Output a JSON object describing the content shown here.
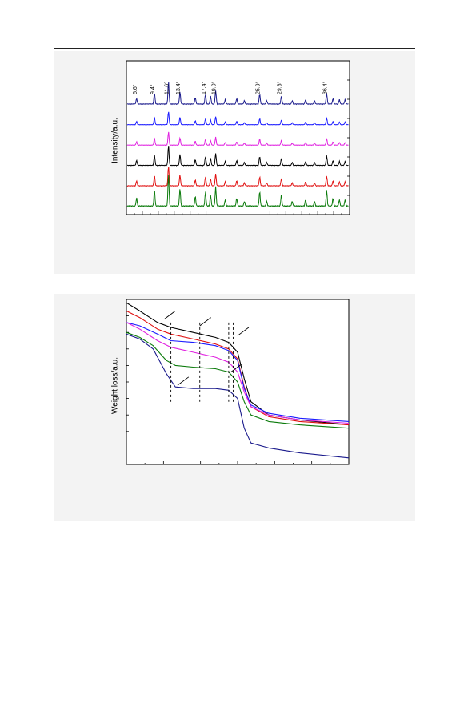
{
  "chart_data": [
    {
      "type": "line",
      "ylabel": "Intensity/a.u.",
      "xlim": [
        5,
        40
      ],
      "annotations": [
        {
          "label": "6.6°",
          "x": 6.6
        },
        {
          "label": "9.4°",
          "x": 9.4
        },
        {
          "label": "11.6°",
          "x": 11.6
        },
        {
          "label": "13.4°",
          "x": 13.4
        },
        {
          "label": "17.4°",
          "x": 17.4
        },
        {
          "label": "19.0°",
          "x": 19.0
        },
        {
          "label": "25.9°",
          "x": 25.9
        },
        {
          "label": "29.3°",
          "x": 29.3
        },
        {
          "label": "36.4°",
          "x": 36.4
        }
      ],
      "series": [
        {
          "color": "#1a1a8c",
          "offset": 5
        },
        {
          "color": "#1a1aff",
          "offset": 4
        },
        {
          "color": "#e020e0",
          "offset": 3
        },
        {
          "color": "#000000",
          "offset": 2
        },
        {
          "color": "#e01010",
          "offset": 1
        },
        {
          "color": "#0a7a0a",
          "offset": 0
        }
      ]
    },
    {
      "type": "line",
      "ylabel": "Weight loss/a.u.",
      "series": [
        {
          "color": "#000000",
          "values": [
            [
              0,
              0.98
            ],
            [
              0.06,
              0.93
            ],
            [
              0.14,
              0.86
            ],
            [
              0.2,
              0.83
            ],
            [
              0.3,
              0.8
            ],
            [
              0.4,
              0.77
            ],
            [
              0.46,
              0.74
            ],
            [
              0.5,
              0.68
            ],
            [
              0.53,
              0.52
            ],
            [
              0.56,
              0.38
            ],
            [
              0.64,
              0.3
            ],
            [
              0.78,
              0.27
            ],
            [
              1,
              0.24
            ]
          ]
        },
        {
          "color": "#e01010",
          "values": [
            [
              0,
              0.93
            ],
            [
              0.06,
              0.89
            ],
            [
              0.14,
              0.82
            ],
            [
              0.2,
              0.79
            ],
            [
              0.3,
              0.76
            ],
            [
              0.4,
              0.73
            ],
            [
              0.46,
              0.7
            ],
            [
              0.5,
              0.64
            ],
            [
              0.53,
              0.47
            ],
            [
              0.56,
              0.35
            ],
            [
              0.64,
              0.29
            ],
            [
              0.78,
              0.26
            ],
            [
              1,
              0.24
            ]
          ]
        },
        {
          "color": "#1a1aff",
          "values": [
            [
              0,
              0.86
            ],
            [
              0.06,
              0.84
            ],
            [
              0.14,
              0.79
            ],
            [
              0.2,
              0.75
            ],
            [
              0.3,
              0.74
            ],
            [
              0.4,
              0.72
            ],
            [
              0.46,
              0.69
            ],
            [
              0.5,
              0.63
            ],
            [
              0.53,
              0.46
            ],
            [
              0.56,
              0.36
            ],
            [
              0.64,
              0.31
            ],
            [
              0.78,
              0.28
            ],
            [
              1,
              0.26
            ]
          ]
        },
        {
          "color": "#e020e0",
          "values": [
            [
              0,
              0.86
            ],
            [
              0.06,
              0.82
            ],
            [
              0.14,
              0.75
            ],
            [
              0.2,
              0.71
            ],
            [
              0.3,
              0.68
            ],
            [
              0.4,
              0.65
            ],
            [
              0.46,
              0.62
            ],
            [
              0.5,
              0.56
            ],
            [
              0.53,
              0.44
            ],
            [
              0.56,
              0.35
            ],
            [
              0.64,
              0.3
            ],
            [
              0.78,
              0.27
            ],
            [
              1,
              0.25
            ]
          ]
        },
        {
          "color": "#0a7a0a",
          "values": [
            [
              0,
              0.8
            ],
            [
              0.06,
              0.77
            ],
            [
              0.12,
              0.72
            ],
            [
              0.18,
              0.63
            ],
            [
              0.22,
              0.6
            ],
            [
              0.3,
              0.59
            ],
            [
              0.4,
              0.58
            ],
            [
              0.46,
              0.56
            ],
            [
              0.5,
              0.5
            ],
            [
              0.53,
              0.38
            ],
            [
              0.56,
              0.3
            ],
            [
              0.64,
              0.26
            ],
            [
              0.78,
              0.24
            ],
            [
              1,
              0.22
            ]
          ]
        },
        {
          "color": "#1a1a8c",
          "values": [
            [
              0,
              0.79
            ],
            [
              0.06,
              0.76
            ],
            [
              0.12,
              0.7
            ],
            [
              0.18,
              0.55
            ],
            [
              0.22,
              0.47
            ],
            [
              0.3,
              0.46
            ],
            [
              0.4,
              0.46
            ],
            [
              0.46,
              0.45
            ],
            [
              0.5,
              0.4
            ],
            [
              0.53,
              0.22
            ],
            [
              0.56,
              0.13
            ],
            [
              0.64,
              0.1
            ],
            [
              0.78,
              0.07
            ],
            [
              1,
              0.04
            ]
          ]
        }
      ],
      "markers": [
        0.16,
        0.2,
        0.33,
        0.46,
        0.48
      ]
    }
  ]
}
